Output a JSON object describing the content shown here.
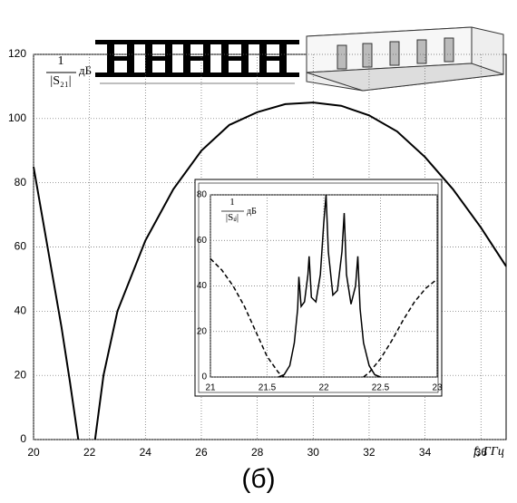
{
  "caption": "(б)",
  "chart_data": [
    {
      "type": "line",
      "xlabel": "f, ГГц",
      "ylabel_numerator": "1",
      "ylabel_denominator": "|S₂₁|",
      "ylabel_unit": "дБ",
      "xlim": [
        20,
        36.9
      ],
      "ylim": [
        0,
        120
      ],
      "xticks": [
        20,
        22,
        24,
        26,
        28,
        30,
        32,
        34,
        36
      ],
      "yticks": [
        0,
        20,
        40,
        60,
        80,
        100,
        120
      ],
      "grid": true,
      "series": [
        {
          "color": "#000000",
          "dash": false,
          "x": [
            20,
            20.5,
            21,
            21.3,
            21.6,
            21.9,
            22.2,
            22.5,
            23,
            24,
            25,
            26,
            27,
            28,
            29,
            30,
            31,
            32,
            33,
            34,
            35,
            36,
            36.9
          ],
          "values": [
            85,
            60,
            35,
            18,
            0,
            null,
            0,
            20,
            40,
            62,
            78,
            90,
            98,
            102,
            104.5,
            105,
            104,
            101,
            96,
            88,
            78,
            66,
            54
          ]
        }
      ]
    },
    {
      "type": "line",
      "ylabel_numerator": "1",
      "ylabel_denominator": "|Sᵢⱼ|",
      "ylabel_unit": "дБ",
      "xlim": [
        21,
        23
      ],
      "ylim": [
        0,
        80
      ],
      "xticks": [
        21,
        21.5,
        22,
        22.5,
        23
      ],
      "yticks": [
        0,
        20,
        40,
        60,
        80
      ],
      "grid": true,
      "series": [
        {
          "color": "#000000",
          "dash": false,
          "x": [
            21.6,
            21.65,
            21.7,
            21.74,
            21.77,
            21.78,
            21.8,
            21.83,
            21.86,
            21.87,
            21.89,
            21.93,
            21.97,
            22.0,
            22.02,
            22.04,
            22.08,
            22.12,
            22.16,
            22.18,
            22.2,
            22.24,
            22.28,
            22.3,
            22.32,
            22.35,
            22.4,
            22.45,
            22.5
          ],
          "values": [
            0,
            1,
            5,
            15,
            30,
            44,
            31,
            33,
            45,
            53,
            35,
            33,
            45,
            68,
            80,
            55,
            36,
            38,
            55,
            72,
            45,
            32,
            40,
            53,
            30,
            15,
            5,
            1,
            0
          ]
        },
        {
          "color": "#000000",
          "dash": true,
          "x": [
            21,
            21.1,
            21.2,
            21.3,
            21.4,
            21.5,
            21.6,
            21.65,
            22.0,
            22.35,
            22.4,
            22.5,
            22.6,
            22.7,
            22.8,
            22.9,
            23
          ],
          "values": [
            52,
            47,
            40,
            31,
            20,
            9,
            2,
            0,
            null,
            0,
            2,
            8,
            16,
            25,
            33,
            39,
            43
          ]
        }
      ]
    }
  ]
}
